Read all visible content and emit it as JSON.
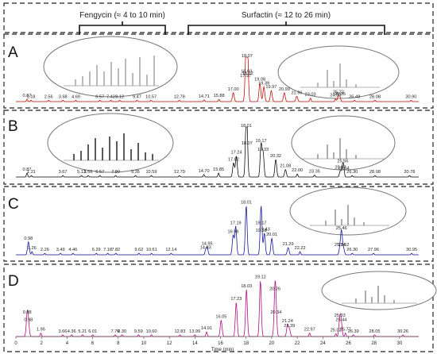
{
  "header": {
    "fengycin": "Fengycin (≈ 4 to 10 min)",
    "surfactin": "Surfactin (≈ 12 to 26 min)"
  },
  "chart_data": [
    {
      "panel": "A",
      "type": "line",
      "color": "#c0160f",
      "peaks": [
        {
          "t": 0.87,
          "h": 0.05,
          "label": "0.87"
        },
        {
          "t": 1.18,
          "h": 0.03,
          "label": "1.18"
        },
        {
          "t": 2.56,
          "h": 0.03,
          "label": "2.56"
        },
        {
          "t": 3.68,
          "h": 0.03,
          "label": "3.68"
        },
        {
          "t": 4.69,
          "h": 0.03,
          "label": "4.69"
        },
        {
          "t": 6.57,
          "h": 0.03,
          "label": "6.57"
        },
        {
          "t": 7.42,
          "h": 0.03,
          "label": "7.42"
        },
        {
          "t": 8.12,
          "h": 0.03,
          "label": "8.12"
        },
        {
          "t": 9.47,
          "h": 0.03,
          "label": "9.47"
        },
        {
          "t": 10.57,
          "h": 0.03,
          "label": "10.57"
        },
        {
          "t": 12.78,
          "h": 0.03,
          "label": "12.78"
        },
        {
          "t": 14.71,
          "h": 0.04,
          "label": "14.71"
        },
        {
          "t": 15.88,
          "h": 0.05,
          "label": "15.88"
        },
        {
          "t": 17.0,
          "h": 0.2,
          "label": "17.00"
        },
        {
          "t": 17.97,
          "h": 0.5,
          "label": "17.97"
        },
        {
          "t": 18.03,
          "h": 0.6,
          "label": "18.03"
        },
        {
          "t": 18.07,
          "h": 0.95,
          "label": "18.07"
        },
        {
          "t": 18.12,
          "h": 0.55,
          "label": "18.12"
        },
        {
          "t": 19.08,
          "h": 0.42,
          "label": "19.08"
        },
        {
          "t": 19.39,
          "h": 0.33,
          "label": "19.39"
        },
        {
          "t": 19.97,
          "h": 0.25,
          "label": "19.97"
        },
        {
          "t": 20.99,
          "h": 0.2,
          "label": "20.99"
        },
        {
          "t": 21.96,
          "h": 0.12,
          "label": "21.96"
        },
        {
          "t": 23.03,
          "h": 0.08,
          "label": "23.03"
        },
        {
          "t": 24.99,
          "h": 0.06,
          "label": "24.99"
        },
        {
          "t": 25.22,
          "h": 0.13,
          "label": "25.22"
        },
        {
          "t": 25.35,
          "h": 0.09,
          "label": "25.35"
        },
        {
          "t": 26.48,
          "h": 0.03,
          "label": "26.48"
        },
        {
          "t": 28.08,
          "h": 0.03,
          "label": "28.08"
        },
        {
          "t": 30.9,
          "h": 0.03,
          "label": "30.90"
        }
      ]
    },
    {
      "panel": "B",
      "type": "line",
      "color": "#111111",
      "peaks": [
        {
          "t": 0.87,
          "h": 0.08,
          "label": "0.87"
        },
        {
          "t": 1.21,
          "h": 0.03,
          "label": "1.21"
        },
        {
          "t": 3.67,
          "h": 0.03,
          "label": "3.67"
        },
        {
          "t": 5.13,
          "h": 0.03,
          "label": "5.13"
        },
        {
          "t": 5.66,
          "h": 0.03,
          "label": "5.66"
        },
        {
          "t": 6.57,
          "h": 0.03,
          "label": "6.57"
        },
        {
          "t": 7.8,
          "h": 0.03,
          "label": "7.80"
        },
        {
          "t": 9.35,
          "h": 0.03,
          "label": "9.35"
        },
        {
          "t": 10.59,
          "h": 0.03,
          "label": "10.59"
        },
        {
          "t": 12.79,
          "h": 0.03,
          "label": "12.79"
        },
        {
          "t": 14.7,
          "h": 0.05,
          "label": "14.70"
        },
        {
          "t": 15.85,
          "h": 0.08,
          "label": "15.85"
        },
        {
          "t": 17.02,
          "h": 0.28,
          "label": "17.02"
        },
        {
          "t": 17.24,
          "h": 0.42,
          "label": "17.24"
        },
        {
          "t": 18.01,
          "h": 0.95,
          "label": "18.01"
        },
        {
          "t": 18.07,
          "h": 0.6,
          "label": "18.07"
        },
        {
          "t": 19.17,
          "h": 0.65,
          "label": "19.17"
        },
        {
          "t": 19.33,
          "h": 0.48,
          "label": "19.33"
        },
        {
          "t": 20.32,
          "h": 0.35,
          "label": "20.32"
        },
        {
          "t": 21.08,
          "h": 0.15,
          "label": "21.08"
        },
        {
          "t": 22.0,
          "h": 0.06,
          "label": "22.00"
        },
        {
          "t": 23.35,
          "h": 0.04,
          "label": "23.35"
        },
        {
          "t": 25.37,
          "h": 0.12,
          "label": "25.37"
        },
        {
          "t": 25.56,
          "h": 0.25,
          "label": "25.56"
        },
        {
          "t": 25.64,
          "h": 0.1,
          "label": "25.64"
        },
        {
          "t": 26.3,
          "h": 0.03,
          "label": "26.30"
        },
        {
          "t": 28.08,
          "h": 0.03,
          "label": "28.08"
        },
        {
          "t": 30.78,
          "h": 0.03,
          "label": "30.78"
        }
      ]
    },
    {
      "panel": "C",
      "type": "line",
      "color": "#1a1a9c",
      "peaks": [
        {
          "t": 0.98,
          "h": 0.25,
          "label": "0.98"
        },
        {
          "t": 1.26,
          "h": 0.06,
          "label": "1.26"
        },
        {
          "t": 2.26,
          "h": 0.03,
          "label": "2.26"
        },
        {
          "t": 3.49,
          "h": 0.03,
          "label": "3.49"
        },
        {
          "t": 4.46,
          "h": 0.03,
          "label": "4.46"
        },
        {
          "t": 6.29,
          "h": 0.03,
          "label": "6.29"
        },
        {
          "t": 7.18,
          "h": 0.03,
          "label": "7.18"
        },
        {
          "t": 7.82,
          "h": 0.03,
          "label": "7.82"
        },
        {
          "t": 9.62,
          "h": 0.03,
          "label": "9.62"
        },
        {
          "t": 10.61,
          "h": 0.03,
          "label": "10.61"
        },
        {
          "t": 12.14,
          "h": 0.03,
          "label": "12.14"
        },
        {
          "t": 14.83,
          "h": 0.07,
          "label": "14.83"
        },
        {
          "t": 14.95,
          "h": 0.15,
          "label": "14.95"
        },
        {
          "t": 16.99,
          "h": 0.38,
          "label": "16.99"
        },
        {
          "t": 17.19,
          "h": 0.55,
          "label": "17.19"
        },
        {
          "t": 18.01,
          "h": 0.95,
          "label": "18.01"
        },
        {
          "t": 19.17,
          "h": 0.55,
          "label": "19.17"
        },
        {
          "t": 19.18,
          "h": 0.4,
          "label": "19.18"
        },
        {
          "t": 19.43,
          "h": 0.42,
          "label": "19.43"
        },
        {
          "t": 20.01,
          "h": 0.32,
          "label": "20.01"
        },
        {
          "t": 21.29,
          "h": 0.14,
          "label": "21.29"
        },
        {
          "t": 22.22,
          "h": 0.06,
          "label": "22.22"
        },
        {
          "t": 25.34,
          "h": 0.12,
          "label": "25.34"
        },
        {
          "t": 25.46,
          "h": 0.45,
          "label": "25.46"
        },
        {
          "t": 25.62,
          "h": 0.12,
          "label": "25.62"
        },
        {
          "t": 26.3,
          "h": 0.03,
          "label": "26.30"
        },
        {
          "t": 27.96,
          "h": 0.03,
          "label": "27.96"
        },
        {
          "t": 30.95,
          "h": 0.03,
          "label": "30.95"
        }
      ]
    },
    {
      "panel": "D",
      "type": "line",
      "color": "#b0127f",
      "peaks": [
        {
          "t": 0.88,
          "h": 0.35,
          "label": "0.88"
        },
        {
          "t": 0.98,
          "h": 0.22,
          "label": "0.98"
        },
        {
          "t": 1.95,
          "h": 0.06,
          "label": "1.95"
        },
        {
          "t": 3.66,
          "h": 0.03,
          "label": "3.66"
        },
        {
          "t": 4.36,
          "h": 0.03,
          "label": "4.36"
        },
        {
          "t": 5.21,
          "h": 0.03,
          "label": "5.21"
        },
        {
          "t": 6.01,
          "h": 0.03,
          "label": "6.01"
        },
        {
          "t": 7.76,
          "h": 0.03,
          "label": "7.76"
        },
        {
          "t": 8.3,
          "h": 0.03,
          "label": "8.30"
        },
        {
          "t": 9.59,
          "h": 0.03,
          "label": "9.59"
        },
        {
          "t": 10.6,
          "h": 0.03,
          "label": "10.60"
        },
        {
          "t": 12.83,
          "h": 0.03,
          "label": "12.83"
        },
        {
          "t": 13.99,
          "h": 0.03,
          "label": "13.99"
        },
        {
          "t": 14.91,
          "h": 0.08,
          "label": "14.91"
        },
        {
          "t": 16.05,
          "h": 0.28,
          "label": "16.05"
        },
        {
          "t": 17.23,
          "h": 0.58,
          "label": "17.23"
        },
        {
          "t": 18.03,
          "h": 0.8,
          "label": "18.03"
        },
        {
          "t": 19.12,
          "h": 0.95,
          "label": "19.12"
        },
        {
          "t": 20.26,
          "h": 0.75,
          "label": "20.26"
        },
        {
          "t": 20.34,
          "h": 0.35,
          "label": "20.34"
        },
        {
          "t": 21.24,
          "h": 0.2,
          "label": "21.24"
        },
        {
          "t": 21.39,
          "h": 0.12,
          "label": "21.39"
        },
        {
          "t": 22.97,
          "h": 0.06,
          "label": "22.97"
        },
        {
          "t": 25.02,
          "h": 0.05,
          "label": "25.02"
        },
        {
          "t": 25.33,
          "h": 0.3,
          "label": "25.33"
        },
        {
          "t": 25.44,
          "h": 0.22,
          "label": "25.44"
        },
        {
          "t": 25.77,
          "h": 0.06,
          "label": "25.77"
        },
        {
          "t": 26.39,
          "h": 0.03,
          "label": "26.39"
        },
        {
          "t": 28.05,
          "h": 0.03,
          "label": "28.05"
        },
        {
          "t": 30.26,
          "h": 0.03,
          "label": "30.26"
        }
      ],
      "xaxis": {
        "title": "Time (min)",
        "ticks": [
          {
            "v": 0,
            "label": "0"
          },
          {
            "v": 2,
            "label": "2"
          },
          {
            "v": 4,
            "label": "4"
          },
          {
            "v": 6,
            "label": "6"
          },
          {
            "v": 8,
            "label": "8"
          },
          {
            "v": 10,
            "label": "10"
          },
          {
            "v": 12,
            "label": "12"
          },
          {
            "v": 14,
            "label": "14"
          },
          {
            "v": 16,
            "label": "16"
          },
          {
            "v": 18,
            "label": "18"
          },
          {
            "v": 20,
            "label": "20"
          },
          {
            "v": 22,
            "label": "22"
          },
          {
            "v": 24,
            "label": "24"
          },
          {
            "v": 26,
            "label": "26"
          },
          {
            "v": 28,
            "label": "28"
          },
          {
            "v": 30,
            "label": "30"
          }
        ]
      }
    }
  ]
}
